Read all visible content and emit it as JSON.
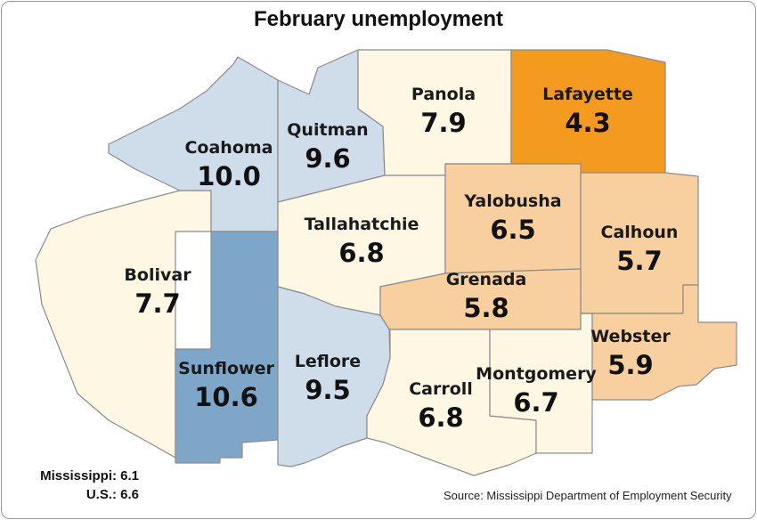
{
  "title": "February unemployment",
  "colors": {
    "level_1": "#fdf7e3",
    "level_2": "#cfdcea",
    "level_3": "#7ea6c8",
    "level_4": "#f8cf9f",
    "level_5": "#f39a1f",
    "border": "#8c8c8c"
  },
  "counties": [
    {
      "name": "Coahoma",
      "value": "10.0",
      "color": "#cfdcea"
    },
    {
      "name": "Quitman",
      "value": "9.6",
      "color": "#cfdcea"
    },
    {
      "name": "Panola",
      "value": "7.9",
      "color": "#fdf7e3"
    },
    {
      "name": "Lafayette",
      "value": "4.3",
      "color": "#f39a1f"
    },
    {
      "name": "Bolivar",
      "value": "7.7",
      "color": "#fdf7e3"
    },
    {
      "name": "Tallahatchie",
      "value": "6.8",
      "color": "#fdf7e3"
    },
    {
      "name": "Yalobusha",
      "value": "6.5",
      "color": "#f8cf9f"
    },
    {
      "name": "Calhoun",
      "value": "5.7",
      "color": "#f8cf9f"
    },
    {
      "name": "Grenada",
      "value": "5.8",
      "color": "#f8cf9f"
    },
    {
      "name": "Sunflower",
      "value": "10.6",
      "color": "#7ea6c8"
    },
    {
      "name": "Leflore",
      "value": "9.5",
      "color": "#cfdcea"
    },
    {
      "name": "Carroll",
      "value": "6.8",
      "color": "#fdf7e3"
    },
    {
      "name": "Montgomery",
      "value": "6.7",
      "color": "#fdf7e3"
    },
    {
      "name": "Webster",
      "value": "5.9",
      "color": "#f8cf9f"
    }
  ],
  "stats": {
    "mississippi": "Mississippi: 6.1",
    "us": "U.S.: 6.6"
  },
  "source": "Source: Mississippi Department of Employment Security"
}
